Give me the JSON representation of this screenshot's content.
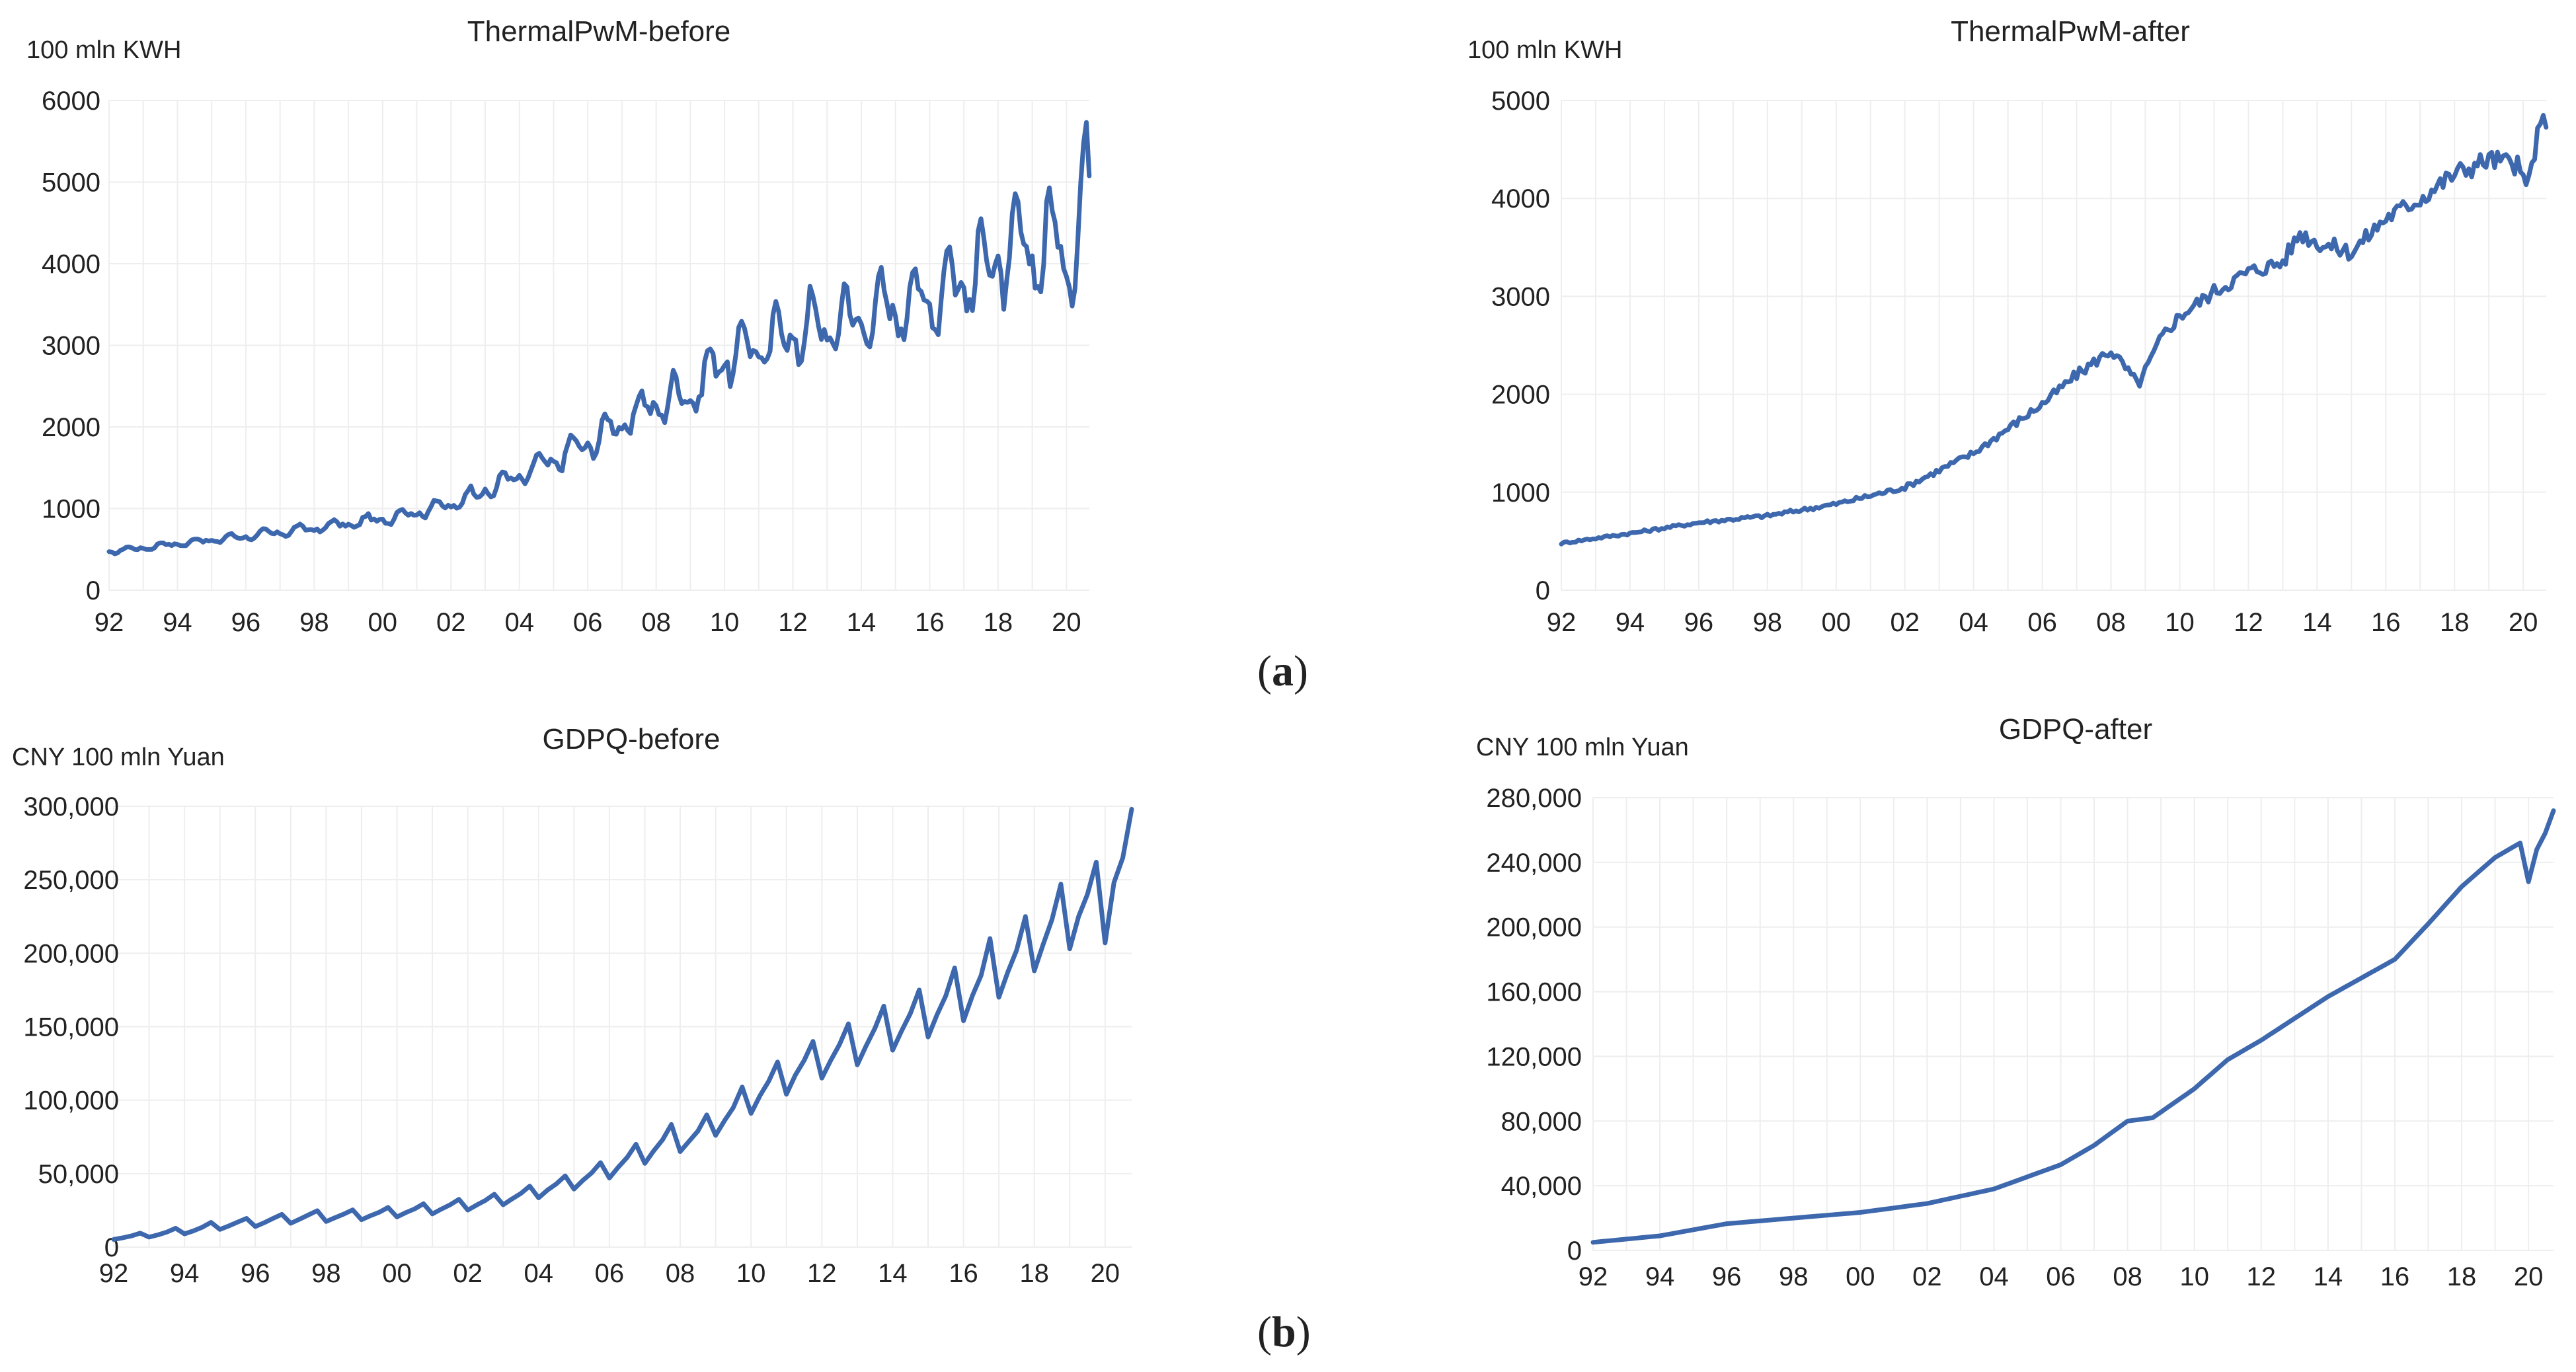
{
  "figure_labels": {
    "a": "a",
    "b": "b"
  },
  "chart_data": [
    {
      "id": "thermal-before",
      "type": "line",
      "title": "ThermalPwM-before",
      "ylabel": "100 mln KWH",
      "xlabel": "",
      "ylim": [
        0,
        6000
      ],
      "yticks": [
        0,
        1000,
        2000,
        3000,
        4000,
        5000,
        6000
      ],
      "ytick_labels": [
        "0",
        "1000",
        "2000",
        "3000",
        "4000",
        "5000",
        "6000"
      ],
      "xlim": [
        1992,
        2020.67
      ],
      "xticks": [
        1992,
        1994,
        1996,
        1998,
        2000,
        2002,
        2004,
        2006,
        2008,
        2010,
        2012,
        2014,
        2016,
        2018,
        2020
      ],
      "xtick_labels": [
        "92",
        "94",
        "96",
        "98",
        "00",
        "02",
        "04",
        "06",
        "08",
        "10",
        "12",
        "14",
        "16",
        "18",
        "20"
      ],
      "grid": true,
      "frequency": "monthly",
      "series": [
        {
          "name": "ThermalPwM-before",
          "color": "#3d68ad",
          "anchors": [
            [
              1992,
              470
            ],
            [
              1994,
              570
            ],
            [
              1996,
              660
            ],
            [
              1998,
              760
            ],
            [
              2000,
              870
            ],
            [
              2002,
              1050
            ],
            [
              2004,
              1400
            ],
            [
              2006,
              1800
            ],
            [
              2008,
              2300
            ],
            [
              2009,
              2400
            ],
            [
              2010,
              2850
            ],
            [
              2012,
              3150
            ],
            [
              2014,
              3350
            ],
            [
              2016,
              3600
            ],
            [
              2018,
              4050
            ],
            [
              2019.5,
              4250
            ],
            [
              2020.1,
              4100
            ],
            [
              2020.67,
              5000
            ]
          ],
          "seasonal_amplitude": [
            [
              1992,
              0.05
            ],
            [
              2008,
              0.09
            ],
            [
              2020.67,
              0.12
            ]
          ]
        }
      ]
    },
    {
      "id": "thermal-after",
      "type": "line",
      "title": "ThermalPwM-after",
      "ylabel": "100 mln KWH",
      "xlabel": "",
      "ylim": [
        0,
        5000
      ],
      "yticks": [
        0,
        1000,
        2000,
        3000,
        4000,
        5000
      ],
      "ytick_labels": [
        "0",
        "1000",
        "2000",
        "3000",
        "4000",
        "5000"
      ],
      "xlim": [
        1992,
        2020.67
      ],
      "xticks": [
        1992,
        1994,
        1996,
        1998,
        2000,
        2002,
        2004,
        2006,
        2008,
        2010,
        2012,
        2014,
        2016,
        2018,
        2020
      ],
      "xtick_labels": [
        "92",
        "94",
        "96",
        "98",
        "00",
        "02",
        "04",
        "06",
        "08",
        "10",
        "12",
        "14",
        "16",
        "18",
        "20"
      ],
      "grid": true,
      "frequency": "monthly",
      "series": [
        {
          "name": "ThermalPwM-after",
          "color": "#3d68ad",
          "anchors": [
            [
              1992,
              480
            ],
            [
              1994,
              580
            ],
            [
              1996,
              690
            ],
            [
              1998,
              760
            ],
            [
              2000,
              880
            ],
            [
              2002,
              1050
            ],
            [
              2004,
              1400
            ],
            [
              2006,
              1900
            ],
            [
              2007,
              2200
            ],
            [
              2008,
              2450
            ],
            [
              2008.8,
              2100
            ],
            [
              2009.5,
              2600
            ],
            [
              2010,
              2800
            ],
            [
              2011,
              3050
            ],
            [
              2012,
              3250
            ],
            [
              2013,
              3350
            ],
            [
              2013.5,
              3650
            ],
            [
              2014,
              3550
            ],
            [
              2015,
              3450
            ],
            [
              2016,
              3800
            ],
            [
              2017,
              4000
            ],
            [
              2018,
              4250
            ],
            [
              2019,
              4400
            ],
            [
              2019.8,
              4350
            ],
            [
              2020.1,
              4100
            ],
            [
              2020.4,
              4600
            ],
            [
              2020.67,
              4850
            ]
          ],
          "noise": 0.025
        }
      ]
    },
    {
      "id": "gdpq-before",
      "type": "line",
      "title": "GDPQ-before",
      "ylabel": "CNY 100 mln Yuan",
      "xlabel": "",
      "ylim": [
        0,
        300000
      ],
      "yticks": [
        0,
        50000,
        100000,
        150000,
        200000,
        250000,
        300000
      ],
      "ytick_labels": [
        "0",
        "50,000",
        "100,000",
        "150,000",
        "200,000",
        "250,000",
        "300,000"
      ],
      "xlim": [
        1992,
        2020.75
      ],
      "xticks": [
        1992,
        1994,
        1996,
        1998,
        2000,
        2002,
        2004,
        2006,
        2008,
        2010,
        2012,
        2014,
        2016,
        2018,
        2020
      ],
      "xtick_labels": [
        "92",
        "94",
        "96",
        "98",
        "00",
        "02",
        "04",
        "06",
        "08",
        "10",
        "12",
        "14",
        "16",
        "18",
        "20"
      ],
      "grid": true,
      "frequency": "quarterly",
      "series": [
        {
          "name": "GDPQ-before",
          "color": "#3d68ad",
          "quarterly_values": [
            5200,
            6300,
            7600,
            9500,
            6800,
            8300,
            10200,
            12800,
            9000,
            11000,
            13500,
            16800,
            12000,
            14400,
            17000,
            19500,
            14000,
            16600,
            19500,
            22300,
            16200,
            19000,
            21900,
            24800,
            17400,
            20000,
            22500,
            25300,
            18600,
            21300,
            23700,
            27000,
            20500,
            23500,
            26000,
            29500,
            22600,
            25800,
            28800,
            32500,
            25200,
            28600,
            31800,
            36000,
            28800,
            32800,
            36500,
            41500,
            33500,
            38800,
            43000,
            48500,
            39500,
            45400,
            50500,
            57500,
            47000,
            54400,
            61000,
            70000,
            57000,
            65500,
            73000,
            83500,
            65000,
            72000,
            79000,
            90000,
            76000,
            86000,
            95000,
            109000,
            91000,
            103000,
            113000,
            126000,
            104000,
            117000,
            127000,
            140000,
            115000,
            127000,
            138000,
            152000,
            124000,
            137000,
            149000,
            164000,
            134000,
            147000,
            159000,
            175000,
            143000,
            158000,
            171000,
            190000,
            154000,
            171000,
            185000,
            210000,
            170000,
            187000,
            202000,
            225000,
            188000,
            206000,
            223000,
            247000,
            203000,
            225000,
            240000,
            262000,
            207000,
            248000,
            265000,
            298000
          ]
        }
      ]
    },
    {
      "id": "gdpq-after",
      "type": "line",
      "title": "GDPQ-after",
      "ylabel": "CNY 100 mln Yuan",
      "xlabel": "",
      "ylim": [
        0,
        280000
      ],
      "yticks": [
        0,
        40000,
        80000,
        120000,
        160000,
        200000,
        240000,
        280000
      ],
      "ytick_labels": [
        "0",
        "40,000",
        "80,000",
        "120,000",
        "160,000",
        "200,000",
        "240,000",
        "280,000"
      ],
      "xlim": [
        1992,
        2020.75
      ],
      "xticks": [
        1992,
        1994,
        1996,
        1998,
        2000,
        2002,
        2004,
        2006,
        2008,
        2010,
        2012,
        2014,
        2016,
        2018,
        2020
      ],
      "xtick_labels": [
        "92",
        "94",
        "96",
        "98",
        "00",
        "02",
        "04",
        "06",
        "08",
        "10",
        "12",
        "14",
        "16",
        "18",
        "20"
      ],
      "grid": true,
      "frequency": "quarterly",
      "series": [
        {
          "name": "GDPQ-after",
          "color": "#3d68ad",
          "anchors": [
            [
              1992,
              5000
            ],
            [
              1994,
              9000
            ],
            [
              1996,
              16500
            ],
            [
              1998,
              20000
            ],
            [
              2000,
              23500
            ],
            [
              2002,
              29000
            ],
            [
              2004,
              38000
            ],
            [
              2006,
              53000
            ],
            [
              2007,
              65000
            ],
            [
              2008,
              80000
            ],
            [
              2008.75,
              82000
            ],
            [
              2010,
              100000
            ],
            [
              2011,
              118000
            ],
            [
              2012,
              130000
            ],
            [
              2014,
              157000
            ],
            [
              2016,
              180000
            ],
            [
              2017,
              202000
            ],
            [
              2018,
              225000
            ],
            [
              2019,
              243000
            ],
            [
              2019.75,
              252000
            ],
            [
              2020,
              228000
            ],
            [
              2020.25,
              248000
            ],
            [
              2020.5,
              258000
            ],
            [
              2020.75,
              272000
            ]
          ]
        }
      ]
    }
  ]
}
